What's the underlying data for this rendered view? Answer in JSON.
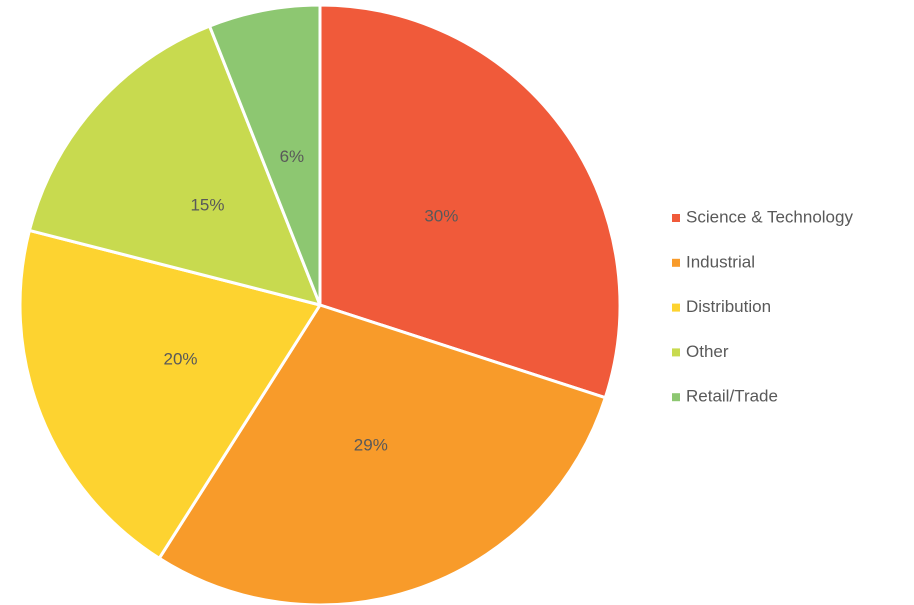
{
  "chart_data": {
    "type": "pie",
    "categories": [
      "Science & Technology",
      "Industrial",
      "Distribution",
      "Other",
      "Retail/Trade"
    ],
    "values": [
      30,
      29,
      20,
      15,
      6
    ],
    "value_labels": [
      "30%",
      "29%",
      "20%",
      "15%",
      "6%"
    ],
    "colors": [
      "#f05a3a",
      "#f89b2a",
      "#fdd330",
      "#c8da4f",
      "#8dc771"
    ],
    "legend": "right"
  }
}
